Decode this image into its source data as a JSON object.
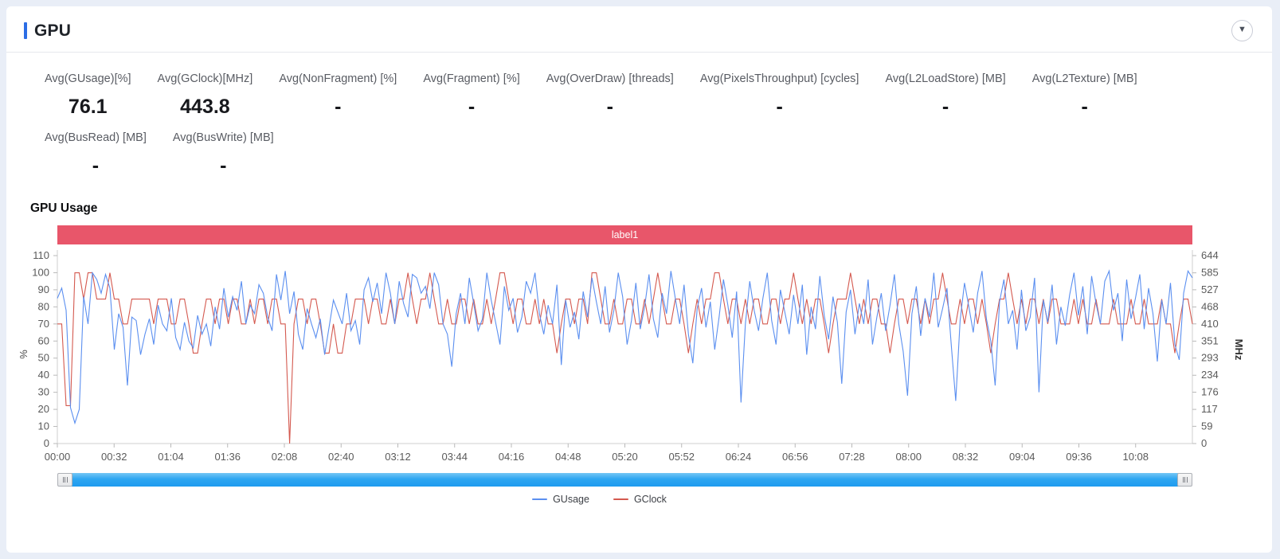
{
  "header": {
    "title": "GPU",
    "accent_color": "#2b6de5",
    "collapse_icon": "▼"
  },
  "stats": {
    "row1": [
      {
        "label": "Avg(GUsage)[%]",
        "value": "76.1"
      },
      {
        "label": "Avg(GClock)[MHz]",
        "value": "443.8"
      },
      {
        "label": "Avg(NonFragment) [%]",
        "value": "-"
      },
      {
        "label": "Avg(Fragment) [%]",
        "value": "-"
      },
      {
        "label": "Avg(OverDraw) [threads]",
        "value": "-"
      },
      {
        "label": "Avg(PixelsThroughput) [cycles]",
        "value": "-"
      },
      {
        "label": "Avg(L2LoadStore) [MB]",
        "value": "-"
      },
      {
        "label": "Avg(L2Texture) [MB]",
        "value": "-"
      }
    ],
    "row2": [
      {
        "label": "Avg(BusRead) [MB]",
        "value": "-"
      },
      {
        "label": "Avg(BusWrite) [MB]",
        "value": "-"
      }
    ]
  },
  "chart": {
    "title": "GPU Usage",
    "banner": {
      "text": "label1",
      "color": "#e8566a"
    }
  },
  "chart_data": {
    "type": "line",
    "title": "GPU Usage",
    "grid": false,
    "legend_position": "bottom",
    "left_axis": {
      "label": "%",
      "min": 0,
      "max": 110,
      "ticks": [
        0,
        10,
        20,
        30,
        40,
        50,
        60,
        70,
        80,
        90,
        100,
        110
      ]
    },
    "right_axis": {
      "label": "MHz",
      "min": 0,
      "max": 644,
      "ticks": [
        0,
        59,
        117,
        176,
        234,
        293,
        351,
        410,
        468,
        527,
        585,
        644
      ]
    },
    "x_ticks": [
      "00:00",
      "00:32",
      "01:04",
      "01:36",
      "02:08",
      "02:40",
      "03:12",
      "03:44",
      "04:16",
      "04:48",
      "05:20",
      "05:52",
      "06:24",
      "06:56",
      "07:28",
      "08:00",
      "08:32",
      "09:04",
      "09:36",
      "10:08"
    ],
    "series": [
      {
        "name": "GUsage",
        "axis": "left",
        "unit": "%",
        "color": "#5b8ff0",
        "values": [
          85,
          91,
          78,
          21,
          12,
          20,
          86,
          70,
          100,
          96,
          88,
          99,
          91,
          55,
          76,
          68,
          34,
          74,
          72,
          52,
          64,
          73,
          58,
          81,
          70,
          66,
          85,
          62,
          55,
          71,
          60,
          56,
          75,
          64,
          70,
          57,
          80,
          67,
          91,
          74,
          86,
          78,
          95,
          70,
          81,
          76,
          93,
          88,
          74,
          66,
          99,
          84,
          101,
          76,
          89,
          64,
          55,
          79,
          70,
          62,
          73,
          52,
          68,
          84,
          77,
          70,
          88,
          66,
          72,
          58,
          90,
          97,
          83,
          94,
          76,
          100,
          88,
          70,
          95,
          82,
          74,
          99,
          97,
          88,
          92,
          79,
          100,
          93,
          70,
          64,
          45,
          76,
          88,
          70,
          97,
          82,
          66,
          73,
          100,
          84,
          71,
          58,
          92,
          78,
          85,
          65,
          74,
          95,
          88,
          100,
          76,
          64,
          81,
          70,
          93,
          46,
          84,
          68,
          77,
          61,
          89,
          74,
          97,
          83,
          70,
          92,
          65,
          78,
          100,
          86,
          58,
          72,
          94,
          67,
          80,
          99,
          73,
          62,
          88,
          76,
          101,
          85,
          70,
          93,
          64,
          47,
          79,
          91,
          68,
          83,
          55,
          74,
          96,
          81,
          62,
          89,
          24,
          70,
          95,
          78,
          66,
          85,
          100,
          72,
          58,
          90,
          77,
          64,
          87,
          70,
          93,
          52,
          80,
          67,
          98,
          75,
          61,
          86,
          71,
          35,
          77,
          90,
          64,
          82,
          70,
          96,
          58,
          74,
          88,
          66,
          81,
          99,
          70,
          54,
          28,
          76,
          92,
          63,
          85,
          74,
          100,
          68,
          79,
          91,
          57,
          25,
          72,
          94,
          80,
          65,
          88,
          101,
          73,
          60,
          34,
          83,
          96,
          70,
          78,
          55,
          90,
          66,
          74,
          97,
          30,
          84,
          71,
          93,
          58,
          80,
          69,
          87,
          100,
          75,
          92,
          64,
          98,
          82,
          70,
          95,
          101,
          78,
          88,
          60,
          96,
          73,
          85,
          99,
          67,
          91,
          76,
          48,
          84,
          70,
          94,
          58,
          49,
          88,
          101,
          97
        ]
      },
      {
        "name": "GClock",
        "axis": "right",
        "unit": "MHz",
        "color": "#d4594f",
        "values": [
          410,
          410,
          130,
          130,
          585,
          585,
          495,
          585,
          585,
          495,
          495,
          495,
          585,
          495,
          495,
          410,
          410,
          495,
          495,
          495,
          495,
          495,
          410,
          495,
          495,
          495,
          410,
          410,
          495,
          495,
          410,
          310,
          310,
          410,
          495,
          495,
          410,
          495,
          495,
          410,
          495,
          495,
          410,
          410,
          495,
          410,
          495,
          495,
          410,
          495,
          495,
          410,
          410,
          0,
          410,
          495,
          495,
          410,
          495,
          495,
          410,
          310,
          310,
          410,
          310,
          310,
          410,
          410,
          495,
          495,
          495,
          410,
          495,
          495,
          410,
          410,
          495,
          410,
          495,
          495,
          585,
          495,
          410,
          495,
          495,
          585,
          495,
          410,
          410,
          495,
          410,
          410,
          495,
          495,
          410,
          495,
          410,
          410,
          495,
          410,
          495,
          585,
          585,
          495,
          410,
          495,
          495,
          410,
          410,
          495,
          410,
          495,
          410,
          410,
          310,
          410,
          495,
          495,
          410,
          495,
          495,
          410,
          585,
          585,
          495,
          410,
          410,
          495,
          410,
          410,
          495,
          495,
          410,
          410,
          495,
          410,
          495,
          585,
          495,
          410,
          410,
          495,
          495,
          410,
          310,
          410,
          495,
          410,
          495,
          495,
          585,
          585,
          495,
          410,
          495,
          495,
          410,
          495,
          410,
          495,
          495,
          410,
          410,
          495,
          495,
          410,
          495,
          495,
          585,
          495,
          410,
          495,
          410,
          495,
          495,
          410,
          310,
          410,
          495,
          495,
          495,
          585,
          495,
          410,
          495,
          410,
          495,
          495,
          410,
          410,
          310,
          410,
          495,
          495,
          410,
          495,
          495,
          410,
          495,
          410,
          495,
          495,
          585,
          495,
          410,
          410,
          495,
          410,
          495,
          495,
          410,
          495,
          410,
          310,
          410,
          495,
          495,
          585,
          495,
          410,
          495,
          410,
          495,
          495,
          410,
          495,
          410,
          495,
          495,
          410,
          410,
          410,
          495,
          410,
          495,
          410,
          410,
          495,
          410,
          410,
          410,
          495,
          410,
          410,
          410,
          495,
          410,
          410,
          495,
          410,
          410,
          410,
          495,
          410,
          410,
          310,
          410,
          495,
          495,
          410
        ]
      }
    ],
    "legend": [
      {
        "name": "GUsage",
        "color": "#5b8ff0"
      },
      {
        "name": "GClock",
        "color": "#d4594f"
      }
    ]
  }
}
